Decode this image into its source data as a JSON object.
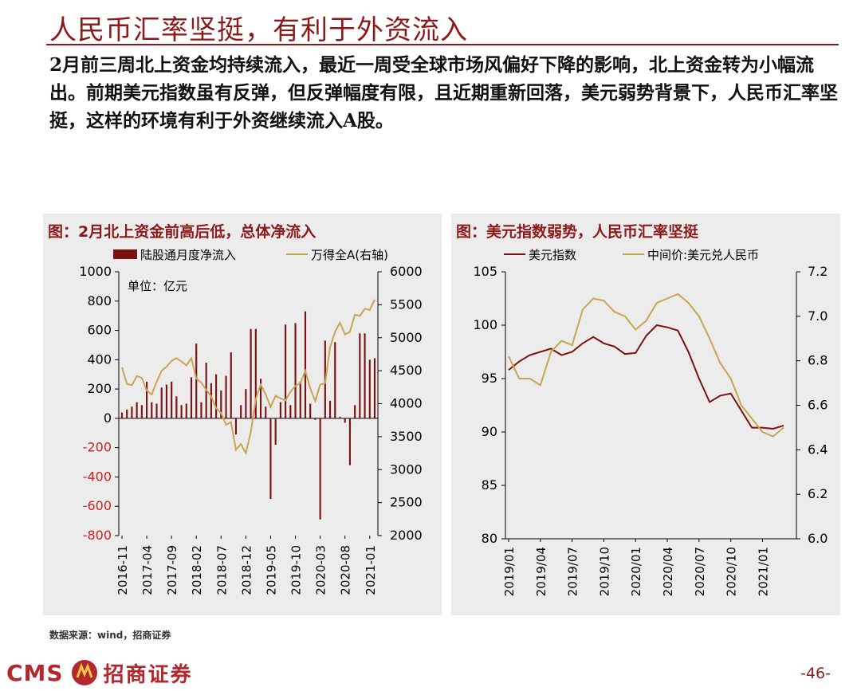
{
  "header": {
    "title": "人民币汇率坚挺，有利于外资流入",
    "summary": "2月前三周北上资金均持续流入，最近一周受全球市场风偏好下降的影响，北上资金转为小幅流出。前期美元指数虽有反弹，但反弹幅度有限，且近期重新回落，美元弱势背景下，人民币汇率坚挺，这样的环境有利于外资继续流入A股。"
  },
  "footer": {
    "source": "数据来源：wind，招商证券",
    "logo_text": "CMS",
    "logo_cn": "招商证券",
    "page": "-46-"
  },
  "colors": {
    "accent": "#8b1a1a",
    "bar": "#7b1212",
    "gold": "#c8a550",
    "negative": "#d21e1e"
  },
  "chart_data": [
    {
      "type": "bar+line",
      "title": "图：2月北上资金前高后低，总体净流入",
      "unit_note": "单位：亿元",
      "legend": [
        "陆股通月度净流入",
        "万得全A(右轴)"
      ],
      "ylim": [
        -800,
        1000
      ],
      "yticks": [
        -800,
        -600,
        -400,
        -200,
        0,
        200,
        400,
        600,
        800,
        1000
      ],
      "y2lim": [
        2000,
        6000
      ],
      "y2ticks": [
        2000,
        2500,
        3000,
        3500,
        4000,
        4500,
        5000,
        5500,
        6000
      ],
      "xtick_labels": [
        "2016-11",
        "2017-04",
        "2017-09",
        "2018-02",
        "2018-07",
        "2018-12",
        "2019-05",
        "2019-10",
        "2020-03",
        "2020-08",
        "2021-01"
      ],
      "categories": [
        "2016-11",
        "2016-12",
        "2017-01",
        "2017-02",
        "2017-03",
        "2017-04",
        "2017-05",
        "2017-06",
        "2017-07",
        "2017-08",
        "2017-09",
        "2017-10",
        "2017-11",
        "2017-12",
        "2018-01",
        "2018-02",
        "2018-03",
        "2018-04",
        "2018-05",
        "2018-06",
        "2018-07",
        "2018-08",
        "2018-09",
        "2018-10",
        "2018-11",
        "2018-12",
        "2019-01",
        "2019-02",
        "2019-03",
        "2019-04",
        "2019-05",
        "2019-06",
        "2019-07",
        "2019-08",
        "2019-09",
        "2019-10",
        "2019-11",
        "2019-12",
        "2020-01",
        "2020-02",
        "2020-03",
        "2020-04",
        "2020-05",
        "2020-06",
        "2020-07",
        "2020-08",
        "2020-09",
        "2020-10",
        "2020-11",
        "2020-12",
        "2021-01",
        "2021-02"
      ],
      "series": [
        {
          "name": "陆股通月度净流入",
          "values": [
            40,
            60,
            80,
            110,
            90,
            250,
            110,
            100,
            210,
            230,
            250,
            150,
            90,
            100,
            280,
            510,
            110,
            380,
            240,
            300,
            190,
            290,
            450,
            -110,
            90,
            200,
            610,
            610,
            270,
            80,
            -550,
            -180,
            110,
            640,
            90,
            650,
            250,
            730,
            100,
            -10,
            -690,
            530,
            120,
            520,
            10,
            -30,
            -320,
            90,
            580,
            580,
            400,
            410
          ]
        },
        {
          "name": "万得全A(右轴)",
          "values": [
            4550,
            4300,
            4280,
            4420,
            4390,
            4200,
            4140,
            4330,
            4500,
            4560,
            4650,
            4690,
            4640,
            4580,
            4690,
            4380,
            4320,
            4210,
            4110,
            3930,
            3860,
            3680,
            3720,
            3300,
            3390,
            3250,
            3570,
            4070,
            4290,
            4140,
            3950,
            4120,
            4080,
            4050,
            4180,
            4270,
            4310,
            4500,
            4230,
            4040,
            4290,
            4310,
            4860,
            5090,
            5230,
            5050,
            5090,
            5350,
            5330,
            5440,
            5420,
            5580
          ]
        }
      ]
    },
    {
      "type": "line",
      "title": "图：美元指数弱势，人民币汇率坚挺",
      "legend": [
        "美元指数",
        "中间价:美元兑人民币"
      ],
      "ylim": [
        80,
        105
      ],
      "yticks": [
        80,
        85,
        90,
        95,
        100,
        105
      ],
      "y2lim": [
        6.0,
        7.2
      ],
      "y2ticks": [
        "6.0",
        "6.2",
        "6.4",
        "6.6",
        "6.8",
        "7.0",
        "7.2"
      ],
      "x": [
        "2019/01",
        "2019/02",
        "2019/03",
        "2019/04",
        "2019/05",
        "2019/06",
        "2019/07",
        "2019/08",
        "2019/09",
        "2019/10",
        "2019/11",
        "2019/12",
        "2020/01",
        "2020/02",
        "2020/03",
        "2020/04",
        "2020/05",
        "2020/06",
        "2020/07",
        "2020/08",
        "2020/09",
        "2020/10",
        "2020/11",
        "2020/12",
        "2021/01",
        "2021/02",
        "2021/03"
      ],
      "xtick_labels": [
        "2019/01",
        "2019/04",
        "2019/07",
        "2019/10",
        "2020/01",
        "2020/04",
        "2020/07",
        "2020/10",
        "2021/01"
      ],
      "series": [
        {
          "name": "美元指数",
          "values": [
            95.8,
            96.6,
            97.2,
            97.5,
            97.8,
            97.2,
            97.5,
            98.3,
            98.9,
            98.3,
            98.0,
            97.3,
            97.4,
            99.0,
            100.0,
            99.8,
            99.5,
            97.5,
            95.0,
            92.8,
            93.4,
            93.6,
            92.0,
            90.4,
            90.4,
            90.3,
            90.6
          ]
        },
        {
          "name": "中间价:美元兑人民币",
          "values": [
            6.82,
            6.72,
            6.72,
            6.69,
            6.84,
            6.89,
            6.87,
            7.03,
            7.08,
            7.07,
            7.02,
            7.0,
            6.94,
            6.98,
            7.06,
            7.08,
            7.1,
            7.06,
            7.0,
            6.9,
            6.79,
            6.72,
            6.6,
            6.54,
            6.48,
            6.46,
            6.5
          ]
        }
      ]
    }
  ]
}
